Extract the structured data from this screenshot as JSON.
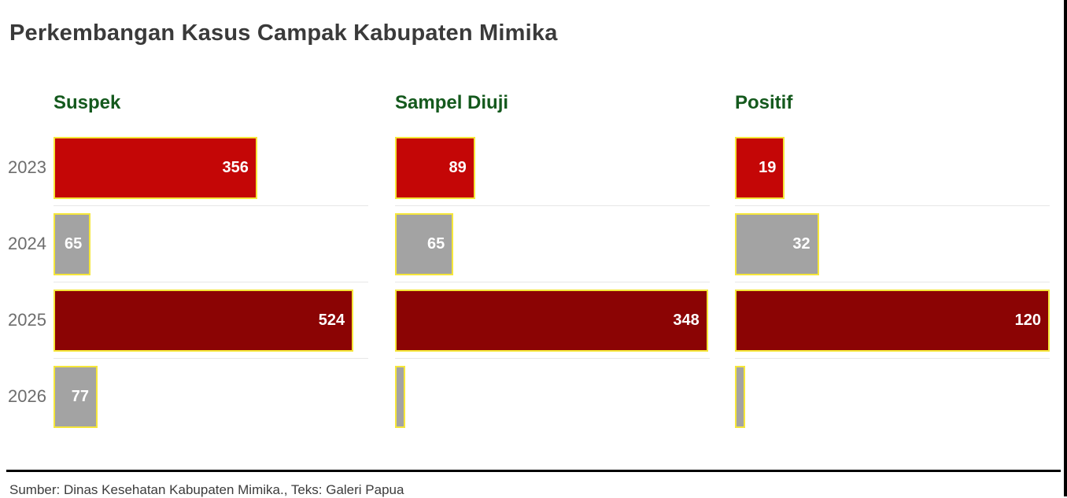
{
  "title": "Perkembangan Kasus Campak Kabupaten Mimika",
  "footer": {
    "source_caption": "Sumber: Dinas Kesehatan Kabupaten Mimika., Teks: Galeri Papua"
  },
  "colors": {
    "bright_red": "#c40606",
    "dark_red": "#8b0404",
    "gray": "#a3a3a3",
    "bar_border_yellow": "#f5e63a",
    "panel_header_green": "#14591d",
    "year_label_gray": "#6d6d6d",
    "separator_gray": "#e7e7e7",
    "rule_black": "#000000"
  },
  "chart_data": {
    "type": "bar",
    "orientation": "horizontal",
    "layout": "small-multiples (3 panels sharing year rows)",
    "title": "Perkembangan Kasus Campak Kabupaten Mimika",
    "categories": [
      "2023",
      "2024",
      "2025",
      "2026"
    ],
    "bar_colors_by_year": [
      "#c40606",
      "#a3a3a3",
      "#8b0404",
      "#a3a3a3"
    ],
    "value_label_style": "inside bar end, white bold",
    "grid": "light horizontal separator between year rows only",
    "panels": [
      {
        "name": "Suspek",
        "values": [
          356,
          65,
          524,
          77
        ],
        "xlim": [
          0,
          550
        ]
      },
      {
        "name": "Sampel Diuji",
        "values": [
          89,
          65,
          348,
          10
        ],
        "xlim": [
          0,
          350
        ]
      },
      {
        "name": "Positif",
        "values": [
          19,
          32,
          120,
          0
        ],
        "xlim": [
          0,
          120
        ]
      }
    ]
  }
}
